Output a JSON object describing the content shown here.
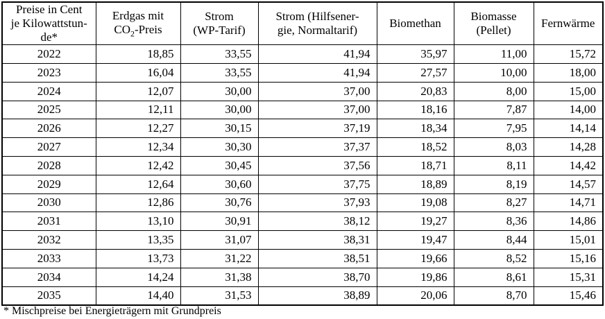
{
  "chart_data": {
    "type": "table",
    "title": "Preise in Cent je Kilowattstunde*",
    "corner_header_display": "Preise in Cent\nje Kilowattstun-\nde*",
    "columns": [
      {
        "label": "Erdgas mit CO2-Preis",
        "display_line1": "Erdgas mit",
        "display_pre_sub": "CO",
        "sub": "2",
        "display_post_sub": "-Preis"
      },
      {
        "label": "Strom (WP-Tarif)",
        "display": "Strom\n(WP-Tarif)"
      },
      {
        "label": "Strom (Hilfsenergie, Normaltarif)",
        "display": "Strom (Hilfsener-\ngie, Normaltarif)"
      },
      {
        "label": "Biomethan",
        "display": "Biomethan"
      },
      {
        "label": "Biomasse (Pellet)",
        "display": "Biomasse\n(Pellet)"
      },
      {
        "label": "Fernwärme",
        "display": "Fernwärme"
      }
    ],
    "rows": [
      {
        "year": "2022",
        "values": [
          "18,85",
          "33,55",
          "41,94",
          "35,97",
          "11,00",
          "15,72"
        ]
      },
      {
        "year": "2023",
        "values": [
          "16,04",
          "33,55",
          "41,94",
          "27,57",
          "10,00",
          "18,00"
        ]
      },
      {
        "year": "2024",
        "values": [
          "12,07",
          "30,00",
          "37,00",
          "20,83",
          "8,00",
          "15,00"
        ]
      },
      {
        "year": "2025",
        "values": [
          "12,11",
          "30,00",
          "37,00",
          "18,16",
          "7,87",
          "14,00"
        ]
      },
      {
        "year": "2026",
        "values": [
          "12,27",
          "30,15",
          "37,19",
          "18,34",
          "7,95",
          "14,14"
        ]
      },
      {
        "year": "2027",
        "values": [
          "12,34",
          "30,30",
          "37,37",
          "18,52",
          "8,03",
          "14,28"
        ]
      },
      {
        "year": "2028",
        "values": [
          "12,42",
          "30,45",
          "37,56",
          "18,71",
          "8,11",
          "14,42"
        ]
      },
      {
        "year": "2029",
        "values": [
          "12,64",
          "30,60",
          "37,75",
          "18,89",
          "8,19",
          "14,57"
        ]
      },
      {
        "year": "2030",
        "values": [
          "12,86",
          "30,76",
          "37,93",
          "19,08",
          "8,27",
          "14,71"
        ]
      },
      {
        "year": "2031",
        "values": [
          "13,10",
          "30,91",
          "38,12",
          "19,27",
          "8,36",
          "14,86"
        ]
      },
      {
        "year": "2032",
        "values": [
          "13,35",
          "31,07",
          "38,31",
          "19,47",
          "8,44",
          "15,01"
        ]
      },
      {
        "year": "2033",
        "values": [
          "13,73",
          "31,22",
          "38,51",
          "19,66",
          "8,52",
          "15,16"
        ]
      },
      {
        "year": "2034",
        "values": [
          "14,24",
          "31,38",
          "38,70",
          "19,86",
          "8,61",
          "15,31"
        ]
      },
      {
        "year": "2035",
        "values": [
          "14,40",
          "31,53",
          "38,89",
          "20,06",
          "8,70",
          "15,46"
        ]
      }
    ],
    "footnote": "* Mischpreise bei Energieträgern mit Grundpreis",
    "colors": {
      "text": "#000000",
      "border": "#000000",
      "background": "#ffffff"
    },
    "layout": {
      "grid": "full-borders",
      "header_position": "top",
      "year_column_position": "left"
    }
  }
}
